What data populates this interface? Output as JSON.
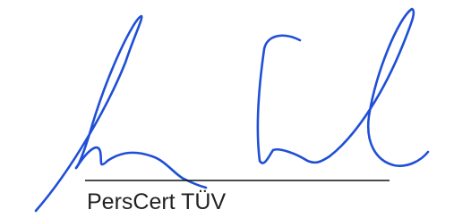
{
  "signature": {
    "caption": "PersCert TÜV"
  }
}
